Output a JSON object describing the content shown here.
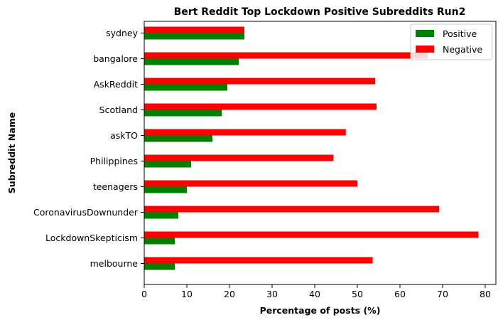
{
  "chart_data": {
    "type": "bar",
    "orientation": "horizontal",
    "title": "Bert Reddit Top Lockdown Positive Subreddits Run2",
    "xlabel": "Percentage of posts (%)",
    "ylabel": "Subreddit Name",
    "xlim": [
      0,
      82.5
    ],
    "xticks": [
      0,
      10,
      20,
      30,
      40,
      50,
      60,
      70,
      80
    ],
    "grid": false,
    "legend_position": "top-right",
    "categories": [
      "sydney",
      "bangalore",
      "AskReddit",
      "Scotland",
      "askTO",
      "Philippines",
      "teenagers",
      "CoronavirusDownunder",
      "LockdownSkepticism",
      "melbourne"
    ],
    "series": [
      {
        "name": "Positive",
        "color": "#008000",
        "values": [
          23.5,
          22.2,
          19.5,
          18.2,
          16.0,
          11.0,
          10.0,
          8.0,
          7.2,
          7.2
        ]
      },
      {
        "name": "Negative",
        "color": "#ff0000",
        "values": [
          23.5,
          66.5,
          54.2,
          54.5,
          47.3,
          44.4,
          50.0,
          69.2,
          78.4,
          53.6
        ]
      }
    ]
  }
}
